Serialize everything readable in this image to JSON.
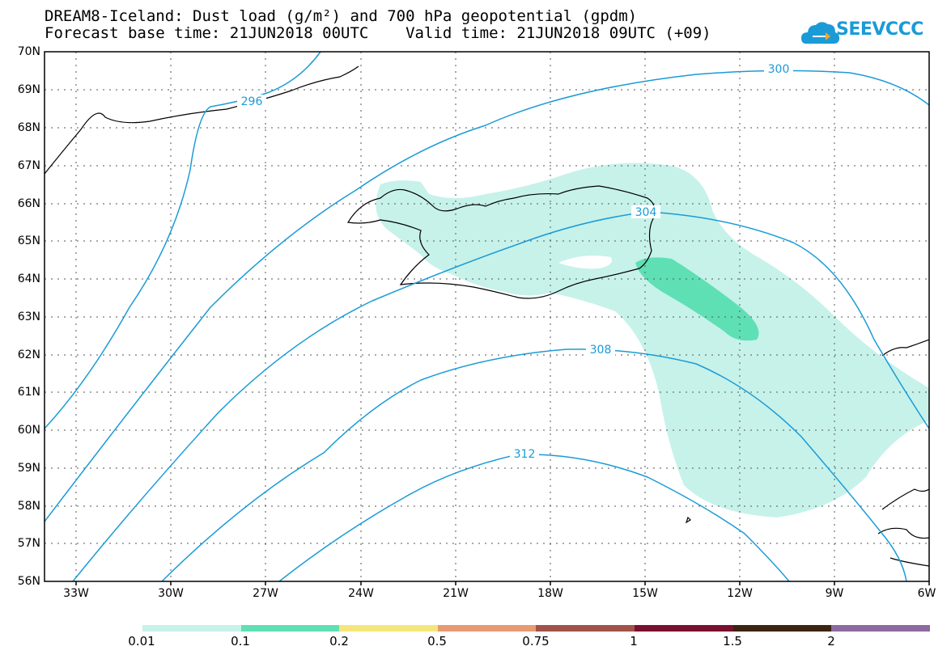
{
  "header": {
    "title": "DREAM8-Iceland: Dust load (g/m²) and 700 hPa geopotential (gpdm)",
    "subtitle": "Forecast base time: 21JUN2018 00UTC    Valid time: 21JUN2018 09UTC (+09)"
  },
  "logo": {
    "text": "SEEVCCC",
    "icon": "cloud-logo-icon"
  },
  "map": {
    "lat_labels": [
      "70N",
      "69N",
      "68N",
      "67N",
      "66N",
      "65N",
      "64N",
      "63N",
      "62N",
      "61N",
      "60N",
      "59N",
      "58N",
      "57N",
      "56N"
    ],
    "lon_labels": [
      "33W",
      "30W",
      "27W",
      "24W",
      "21W",
      "18W",
      "15W",
      "12W",
      "9W",
      "6W"
    ],
    "contour_labels": [
      "296",
      "300",
      "304",
      "308",
      "312"
    ],
    "land_outline_color": "#000000",
    "contour_color": "#1a9bd7"
  },
  "legend": {
    "levels": [
      "0.01",
      "0.1",
      "0.2",
      "0.5",
      "0.75",
      "1",
      "1.5",
      "2"
    ],
    "colors": [
      "#c6f2ea",
      "#5fe0b4",
      "#f6e67a",
      "#e99a72",
      "#a3524a",
      "#7a0f2e",
      "#3b2512",
      "#8c6aa0"
    ]
  }
}
